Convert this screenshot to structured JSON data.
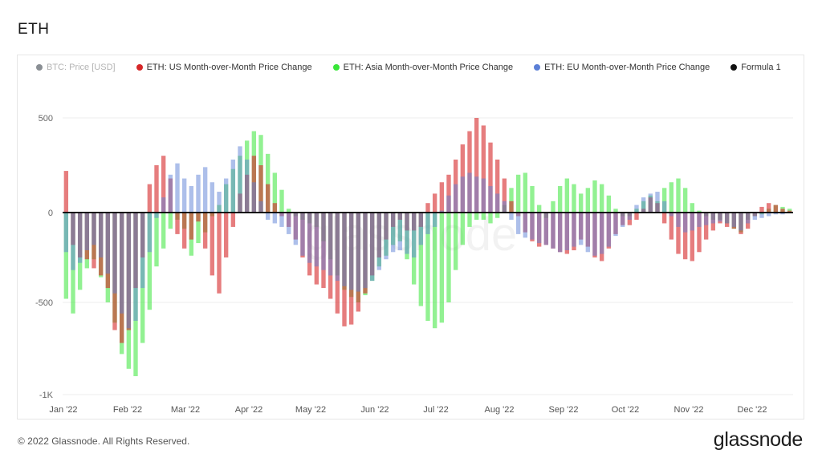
{
  "page": {
    "title": "ETH",
    "copyright": "© 2022 Glassnode. All Rights Reserved.",
    "brand": "glassnode",
    "watermark": "glassnode"
  },
  "colors": {
    "btc": "#8a8f94",
    "us": "#d62728",
    "asia": "#39e639",
    "eu": "#5b7fd6",
    "formula": "#111111",
    "grid": "#eeeeee",
    "axis_text": "#666666"
  },
  "chart_data": {
    "type": "bar",
    "title": "ETH",
    "ylim": [
      -1000,
      600
    ],
    "yticks": [
      500,
      0,
      -500,
      -1000
    ],
    "ytick_labels": [
      "500",
      "0",
      "-500",
      "-1K"
    ],
    "xlabels": [
      "Jan '22",
      "Feb '22",
      "Mar '22",
      "Apr '22",
      "May '22",
      "Jun '22",
      "Jul '22",
      "Aug '22",
      "Sep '22",
      "Oct '22",
      "Nov '22",
      "Dec '22"
    ],
    "legend": [
      {
        "key": "btc",
        "label": "BTC: Price [USD]",
        "muted": true
      },
      {
        "key": "us",
        "label": "ETH: US Month-over-Month Price Change",
        "muted": false
      },
      {
        "key": "asia",
        "label": "ETH: Asia Month-over-Month Price Change",
        "muted": false
      },
      {
        "key": "eu",
        "label": "ETH: EU Month-over-Month Price Change",
        "muted": false
      },
      {
        "key": "formula",
        "label": "Formula 1",
        "muted": false
      }
    ],
    "sample_step_days": 3,
    "series": [
      {
        "name": "ETH: Asia Month-over-Month Price Change",
        "key": "asia",
        "values": [
          -480,
          -560,
          -430,
          -310,
          -260,
          -360,
          -500,
          -610,
          -780,
          -860,
          -900,
          -720,
          -540,
          -300,
          -200,
          -90,
          -40,
          -90,
          -240,
          -170,
          -110,
          -20,
          40,
          150,
          230,
          300,
          380,
          430,
          410,
          310,
          210,
          120,
          20,
          -20,
          -40,
          -60,
          -80,
          -160,
          -260,
          -350,
          -430,
          -470,
          -500,
          -460,
          -380,
          -300,
          -240,
          -180,
          -160,
          -260,
          -400,
          -520,
          -600,
          -640,
          -610,
          -500,
          -320,
          -180,
          -80,
          -40,
          -40,
          -60,
          -30,
          40,
          130,
          200,
          210,
          140,
          40,
          -30,
          60,
          140,
          180,
          150,
          100,
          130,
          170,
          150,
          90,
          20,
          -20,
          -20,
          20,
          60,
          90,
          60,
          130,
          160,
          180,
          130,
          50,
          10,
          -20,
          -40,
          -40,
          -60,
          -90,
          -110,
          -40,
          -20,
          -10,
          20,
          40,
          30,
          20
        ]
      },
      {
        "name": "ETH: US Month-over-Month Price Change",
        "key": "us",
        "values": [
          220,
          -180,
          -250,
          -260,
          -310,
          -350,
          -420,
          -650,
          -720,
          -650,
          -420,
          -250,
          150,
          250,
          300,
          180,
          -120,
          -200,
          -150,
          -50,
          -200,
          -350,
          -450,
          -250,
          -80,
          100,
          200,
          300,
          250,
          150,
          50,
          -20,
          -80,
          -150,
          -250,
          -350,
          -400,
          -420,
          -480,
          -560,
          -630,
          -620,
          -550,
          -450,
          -350,
          -250,
          -150,
          -80,
          -40,
          -100,
          -100,
          -80,
          50,
          100,
          160,
          200,
          280,
          360,
          430,
          500,
          460,
          370,
          280,
          180,
          60,
          -20,
          -110,
          -160,
          -190,
          -180,
          -200,
          -220,
          -230,
          -210,
          -150,
          -190,
          -250,
          -270,
          -200,
          -120,
          -70,
          -70,
          -40,
          20,
          80,
          50,
          -60,
          -150,
          -230,
          -260,
          -270,
          -220,
          -150,
          -100,
          -60,
          -80,
          -90,
          -120,
          -90,
          -20,
          30,
          50,
          40,
          20,
          10
        ]
      },
      {
        "name": "ETH: EU Month-over-Month Price Change",
        "key": "eu",
        "values": [
          -220,
          -320,
          -280,
          -210,
          -180,
          -250,
          -340,
          -450,
          -560,
          -640,
          -600,
          -420,
          -220,
          -30,
          80,
          200,
          260,
          180,
          140,
          200,
          240,
          160,
          110,
          180,
          280,
          350,
          280,
          160,
          60,
          -40,
          -60,
          -80,
          -120,
          -180,
          -240,
          -280,
          -300,
          -320,
          -350,
          -380,
          -410,
          -430,
          -440,
          -420,
          -380,
          -320,
          -260,
          -220,
          -210,
          -230,
          -250,
          -180,
          -120,
          -80,
          10,
          90,
          150,
          190,
          210,
          190,
          180,
          140,
          100,
          60,
          -40,
          -120,
          -140,
          -150,
          -170,
          -180,
          -200,
          -220,
          -210,
          -190,
          -180,
          -220,
          -240,
          -230,
          -190,
          -130,
          -80,
          -40,
          40,
          80,
          100,
          110,
          60,
          -20,
          -80,
          -110,
          -100,
          -80,
          -70,
          -60,
          -50,
          -60,
          -80,
          -100,
          -60,
          -40,
          -30,
          -20,
          -10,
          -10,
          0
        ]
      }
    ]
  }
}
